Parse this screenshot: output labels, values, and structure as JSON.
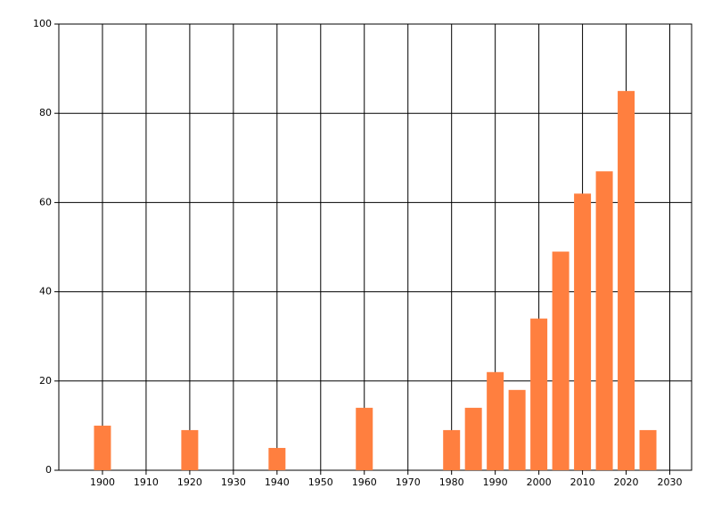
{
  "chart_data": {
    "type": "bar",
    "x": [
      1900,
      1920,
      1940,
      1960,
      1980,
      1985,
      1990,
      1995,
      2000,
      2005,
      2010,
      2015,
      2020,
      2025
    ],
    "values": [
      10,
      9,
      5,
      14,
      9,
      14,
      22,
      18,
      34,
      49,
      62,
      67,
      85,
      9
    ],
    "color": "#ff7f3f",
    "xlim": [
      1890,
      2035
    ],
    "xticks": [
      1900,
      1910,
      1920,
      1930,
      1940,
      1950,
      1960,
      1970,
      1980,
      1990,
      2000,
      2010,
      2020,
      2030
    ],
    "ylim": [
      0,
      100
    ],
    "yticks": [
      0,
      20,
      40,
      60,
      80,
      100
    ],
    "grid": true
  }
}
